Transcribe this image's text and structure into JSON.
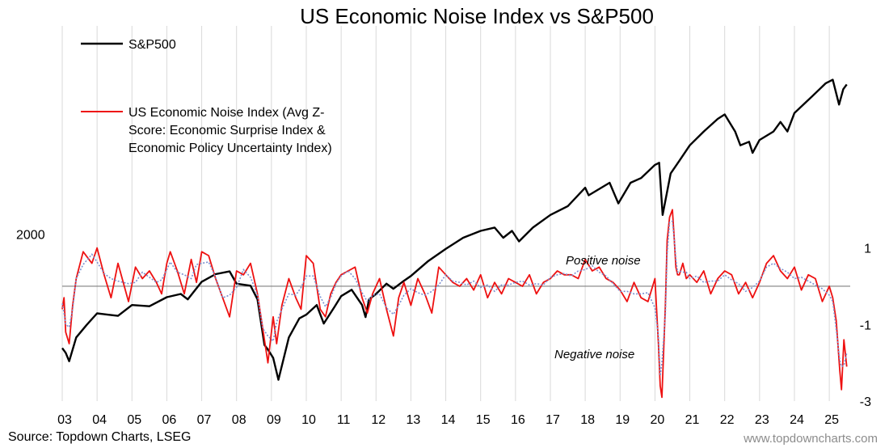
{
  "chart_data": {
    "type": "line",
    "title": "US Economic Noise Index vs S&P500",
    "x_ticks": [
      "03",
      "04",
      "05",
      "06",
      "07",
      "08",
      "09",
      "10",
      "11",
      "12",
      "13",
      "14",
      "15",
      "16",
      "17",
      "18",
      "19",
      "20",
      "21",
      "22",
      "23",
      "24",
      "25"
    ],
    "xlim": [
      2003.0,
      2025.6
    ],
    "left_axis": {
      "ticks": [
        "2000"
      ],
      "tick_values": [
        2000
      ],
      "scale": "log",
      "ylim": [
        600,
        9000
      ]
    },
    "right_axis": {
      "ticks": [
        "1",
        "-1",
        "-3"
      ],
      "tick_values": [
        1,
        -1,
        -3
      ],
      "ylim": [
        -3,
        6.8
      ]
    },
    "grid": "vertical",
    "legend_position": "top-left",
    "series": [
      {
        "name": "S&P500",
        "axis": "left",
        "color": "#000000",
        "x": [
          2003.0,
          2003.1,
          2003.2,
          2003.4,
          2003.7,
          2004.0,
          2004.3,
          2004.6,
          2005.0,
          2005.5,
          2006.0,
          2006.4,
          2006.6,
          2007.0,
          2007.4,
          2007.8,
          2008.0,
          2008.4,
          2008.6,
          2008.8,
          2008.9,
          2009.05,
          2009.2,
          2009.5,
          2009.8,
          2010.0,
          2010.3,
          2010.5,
          2010.8,
          2011.0,
          2011.3,
          2011.6,
          2011.7,
          2011.8,
          2012.0,
          2012.3,
          2012.5,
          2012.8,
          2013.0,
          2013.5,
          2014.0,
          2014.5,
          2015.0,
          2015.4,
          2015.65,
          2015.9,
          2016.1,
          2016.5,
          2017.0,
          2017.5,
          2018.0,
          2018.1,
          2018.7,
          2018.95,
          2019.3,
          2019.6,
          2020.0,
          2020.12,
          2020.22,
          2020.45,
          2020.7,
          2021.0,
          2021.4,
          2021.8,
          2022.0,
          2022.3,
          2022.45,
          2022.7,
          2022.8,
          2023.0,
          2023.4,
          2023.6,
          2023.8,
          2024.0,
          2024.5,
          2024.9,
          2025.1,
          2025.28,
          2025.4,
          2025.5
        ],
        "values": [
          880,
          850,
          800,
          950,
          1040,
          1130,
          1120,
          1110,
          1200,
          1190,
          1270,
          1300,
          1250,
          1420,
          1500,
          1530,
          1400,
          1380,
          1250,
          900,
          870,
          820,
          700,
          950,
          1090,
          1120,
          1200,
          1050,
          1180,
          1280,
          1340,
          1200,
          1100,
          1250,
          1300,
          1400,
          1350,
          1430,
          1480,
          1650,
          1800,
          1950,
          2050,
          2100,
          1950,
          2050,
          1900,
          2100,
          2300,
          2450,
          2800,
          2650,
          2900,
          2500,
          2900,
          3000,
          3300,
          3350,
          2300,
          3100,
          3400,
          3800,
          4200,
          4600,
          4750,
          4200,
          3800,
          3900,
          3600,
          3950,
          4200,
          4500,
          4200,
          4800,
          5400,
          5950,
          6100,
          5100,
          5700,
          5900
        ]
      },
      {
        "name": "US Economic Noise Index (Avg Z-Score: Economic Surprise Index & Economic Policy Uncertainty Index)",
        "axis": "right",
        "color": "#ee1111",
        "x": [
          2003.0,
          2003.05,
          2003.1,
          2003.2,
          2003.3,
          2003.4,
          2003.6,
          2003.85,
          2004.0,
          2004.2,
          2004.4,
          2004.6,
          2004.75,
          2004.9,
          2005.1,
          2005.3,
          2005.5,
          2005.7,
          2005.85,
          2006.0,
          2006.1,
          2006.3,
          2006.5,
          2006.7,
          2006.85,
          2007.0,
          2007.2,
          2007.4,
          2007.6,
          2007.8,
          2008.0,
          2008.2,
          2008.4,
          2008.6,
          2008.75,
          2008.9,
          2009.05,
          2009.15,
          2009.3,
          2009.5,
          2009.7,
          2009.85,
          2010.0,
          2010.2,
          2010.4,
          2010.55,
          2010.7,
          2010.85,
          2011.0,
          2011.2,
          2011.4,
          2011.6,
          2011.75,
          2011.9,
          2012.1,
          2012.3,
          2012.5,
          2012.65,
          2012.8,
          2013.0,
          2013.2,
          2013.4,
          2013.6,
          2013.8,
          2014.0,
          2014.2,
          2014.4,
          2014.6,
          2014.8,
          2015.0,
          2015.2,
          2015.4,
          2015.6,
          2015.8,
          2016.0,
          2016.2,
          2016.4,
          2016.6,
          2016.8,
          2017.0,
          2017.2,
          2017.4,
          2017.6,
          2017.8,
          2018.0,
          2018.2,
          2018.4,
          2018.6,
          2018.8,
          2019.0,
          2019.2,
          2019.4,
          2019.6,
          2019.8,
          2020.0,
          2020.1,
          2020.15,
          2020.2,
          2020.3,
          2020.35,
          2020.42,
          2020.5,
          2020.55,
          2020.6,
          2020.65,
          2020.7,
          2020.8,
          2020.9,
          2021.0,
          2021.2,
          2021.4,
          2021.6,
          2021.8,
          2022.0,
          2022.2,
          2022.4,
          2022.6,
          2022.8,
          2023.0,
          2023.2,
          2023.4,
          2023.6,
          2023.8,
          2024.0,
          2024.2,
          2024.4,
          2024.6,
          2024.8,
          2025.0,
          2025.1,
          2025.2,
          2025.3,
          2025.35,
          2025.42,
          2025.5
        ],
        "values": [
          -0.6,
          -0.3,
          -1.2,
          -1.5,
          -0.5,
          0.2,
          0.9,
          0.6,
          1.0,
          0.3,
          -0.3,
          0.6,
          0.1,
          -0.4,
          0.5,
          0.2,
          0.4,
          0.1,
          -0.2,
          0.6,
          0.9,
          0.4,
          -0.2,
          0.7,
          0.1,
          0.9,
          0.8,
          0.2,
          -0.3,
          -0.8,
          0.4,
          0.3,
          0.6,
          -0.2,
          -1.1,
          -2.0,
          -0.8,
          -1.5,
          -0.5,
          0.2,
          -0.3,
          -0.6,
          0.8,
          0.6,
          -0.6,
          -0.8,
          -0.2,
          0.1,
          0.3,
          0.4,
          0.5,
          -0.3,
          -0.7,
          -0.2,
          0.2,
          -0.6,
          -1.3,
          -0.3,
          0.1,
          -0.5,
          0.2,
          -0.2,
          -0.7,
          0.5,
          0.3,
          0.1,
          0.0,
          0.2,
          -0.1,
          0.3,
          -0.3,
          0.1,
          -0.2,
          0.2,
          0.1,
          0.0,
          0.3,
          -0.2,
          0.1,
          0.2,
          0.4,
          0.3,
          0.3,
          0.2,
          0.7,
          0.4,
          0.5,
          0.2,
          0.1,
          -0.1,
          -0.4,
          0.1,
          -0.3,
          -0.4,
          0.2,
          -1.5,
          -2.6,
          -2.9,
          -0.5,
          1.2,
          1.8,
          2.0,
          1.3,
          0.5,
          0.3,
          0.3,
          0.6,
          0.2,
          0.3,
          0.1,
          0.4,
          -0.2,
          0.2,
          0.4,
          0.3,
          -0.2,
          0.1,
          -0.3,
          0.1,
          0.6,
          0.8,
          0.4,
          0.2,
          0.5,
          -0.1,
          0.3,
          0.2,
          -0.4,
          0.0,
          -0.3,
          -0.9,
          -2.2,
          -2.7,
          -1.4,
          -2.1
        ]
      }
    ],
    "annotations": [
      "Positive noise",
      "Negative noise"
    ]
  },
  "legend": {
    "sp500_label": "S&P500",
    "noise_label_line1": "US Economic Noise Index (Avg Z-",
    "noise_label_line2": "Score: Economic Surprise Index &",
    "noise_label_line3": "Economic Policy Uncertainty Index)"
  },
  "footer": {
    "source": "Source: Topdown Charts, LSEG",
    "website": "www.topdowncharts.com"
  },
  "colors": {
    "sp500": "#000000",
    "noise": "#ee1111",
    "smooth": "#7b8fd0",
    "grid": "#d9d9d9",
    "zero_line": "#808080"
  }
}
